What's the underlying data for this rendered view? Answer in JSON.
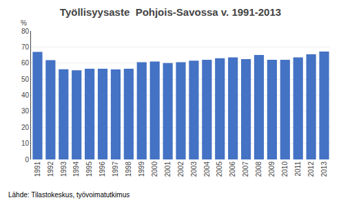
{
  "chart_data": {
    "type": "bar",
    "title": "Työllisyysaste  Pohjois-Savossa v. 1991-2013",
    "ylabel": "%",
    "categories": [
      "1991",
      "1992",
      "1993",
      "1994",
      "1995",
      "1996",
      "1997",
      "1998",
      "1999",
      "2000",
      "2001",
      "2002",
      "2003",
      "2004",
      "2005",
      "2006",
      "2007",
      "2008",
      "2009",
      "2010",
      "2011",
      "2012",
      "2013"
    ],
    "values": [
      67.0,
      61.8,
      56.2,
      55.5,
      56.5,
      56.5,
      56.0,
      56.5,
      60.5,
      61.0,
      60.0,
      60.5,
      61.5,
      62.0,
      63.0,
      63.5,
      62.5,
      65.0,
      62.0,
      62.0,
      63.5,
      65.5,
      67.2
    ],
    "color": "#4472C4",
    "ylim": [
      0,
      80
    ],
    "yticks": [
      0,
      10,
      20,
      30,
      40,
      50,
      60,
      70,
      80
    ],
    "grid": true,
    "annotations": [
      "Lähde: Tilastokeskus, työvoimatutkimus"
    ]
  }
}
